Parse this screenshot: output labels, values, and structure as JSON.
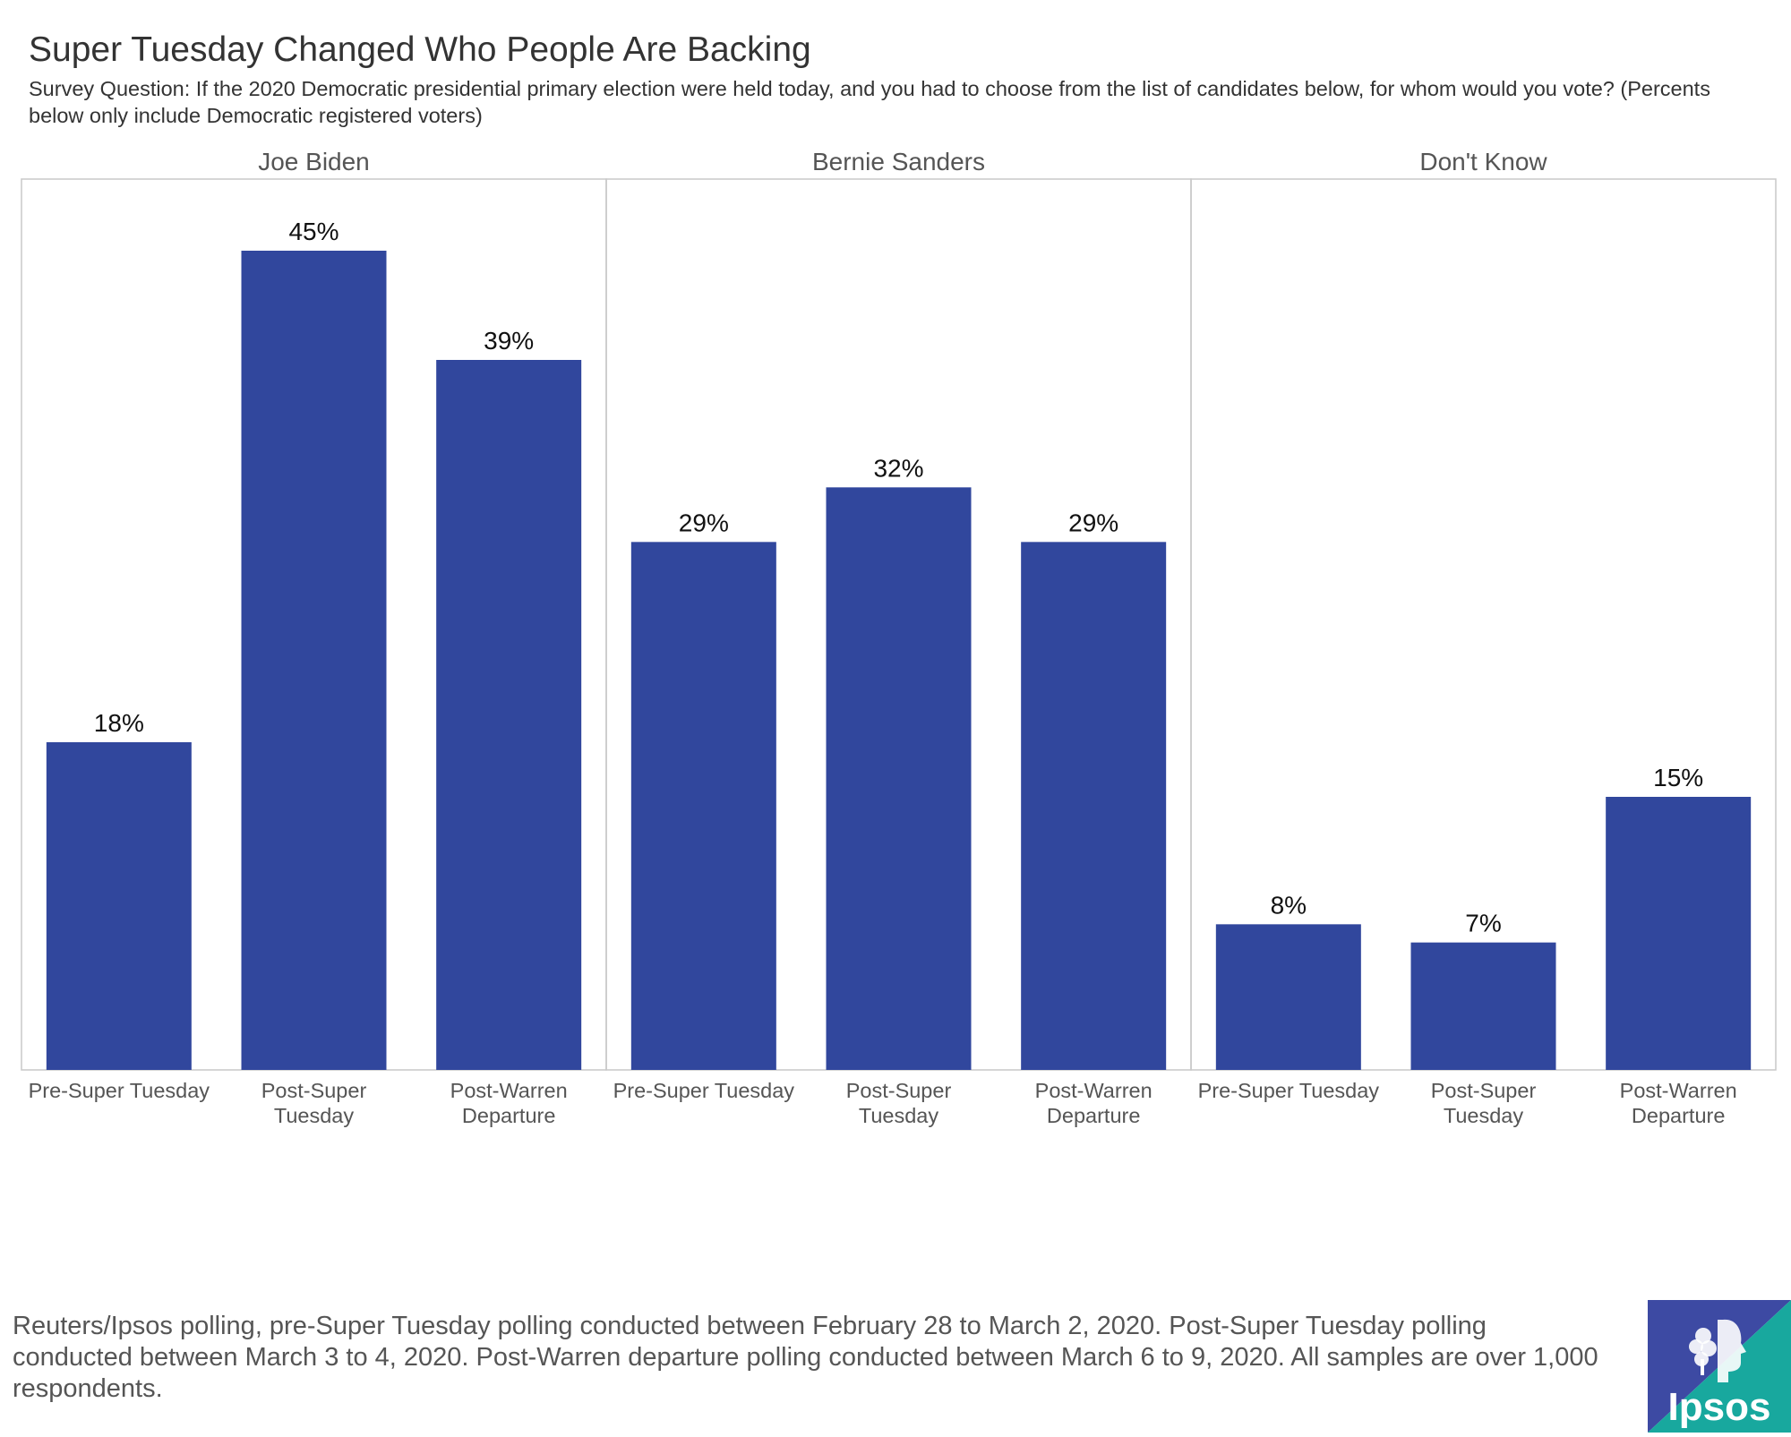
{
  "title": "Super Tuesday Changed Who People Are Backing",
  "subtitle": "Survey Question: If the 2020 Democratic presidential primary election were held today, and you had to choose from the list of candidates below, for whom would you vote? (Percents below only include Democratic registered voters)",
  "note": "Reuters/Ipsos polling, pre-Super Tuesday polling conducted between February 28 to March 2, 2020. Post-Super Tuesday polling conducted between March 3 to 4, 2020. Post-Warren departure polling conducted between March 6 to 9, 2020. All samples are over 1,000 respondents.",
  "logo": {
    "text": "Ipsos",
    "icon": "ipsos-head-tree-icon"
  },
  "colors": {
    "bar": "#31479d",
    "logo_blue": "#3d4aa3",
    "logo_teal": "#18a89e"
  },
  "chart_data": {
    "type": "bar",
    "layout": "faceted",
    "ylim": [
      0,
      50
    ],
    "value_suffix": "%",
    "grid": false,
    "categories": [
      [
        "Pre-Super Tuesday"
      ],
      [
        "Post-Super",
        "Tuesday"
      ],
      [
        "Post-Warren",
        "Departure"
      ]
    ],
    "facets": [
      {
        "name": "Joe Biden",
        "values": [
          18,
          45,
          39
        ]
      },
      {
        "name": "Bernie Sanders",
        "values": [
          29,
          32,
          29
        ]
      },
      {
        "name": "Don't Know",
        "values": [
          8,
          7,
          15
        ]
      }
    ]
  }
}
